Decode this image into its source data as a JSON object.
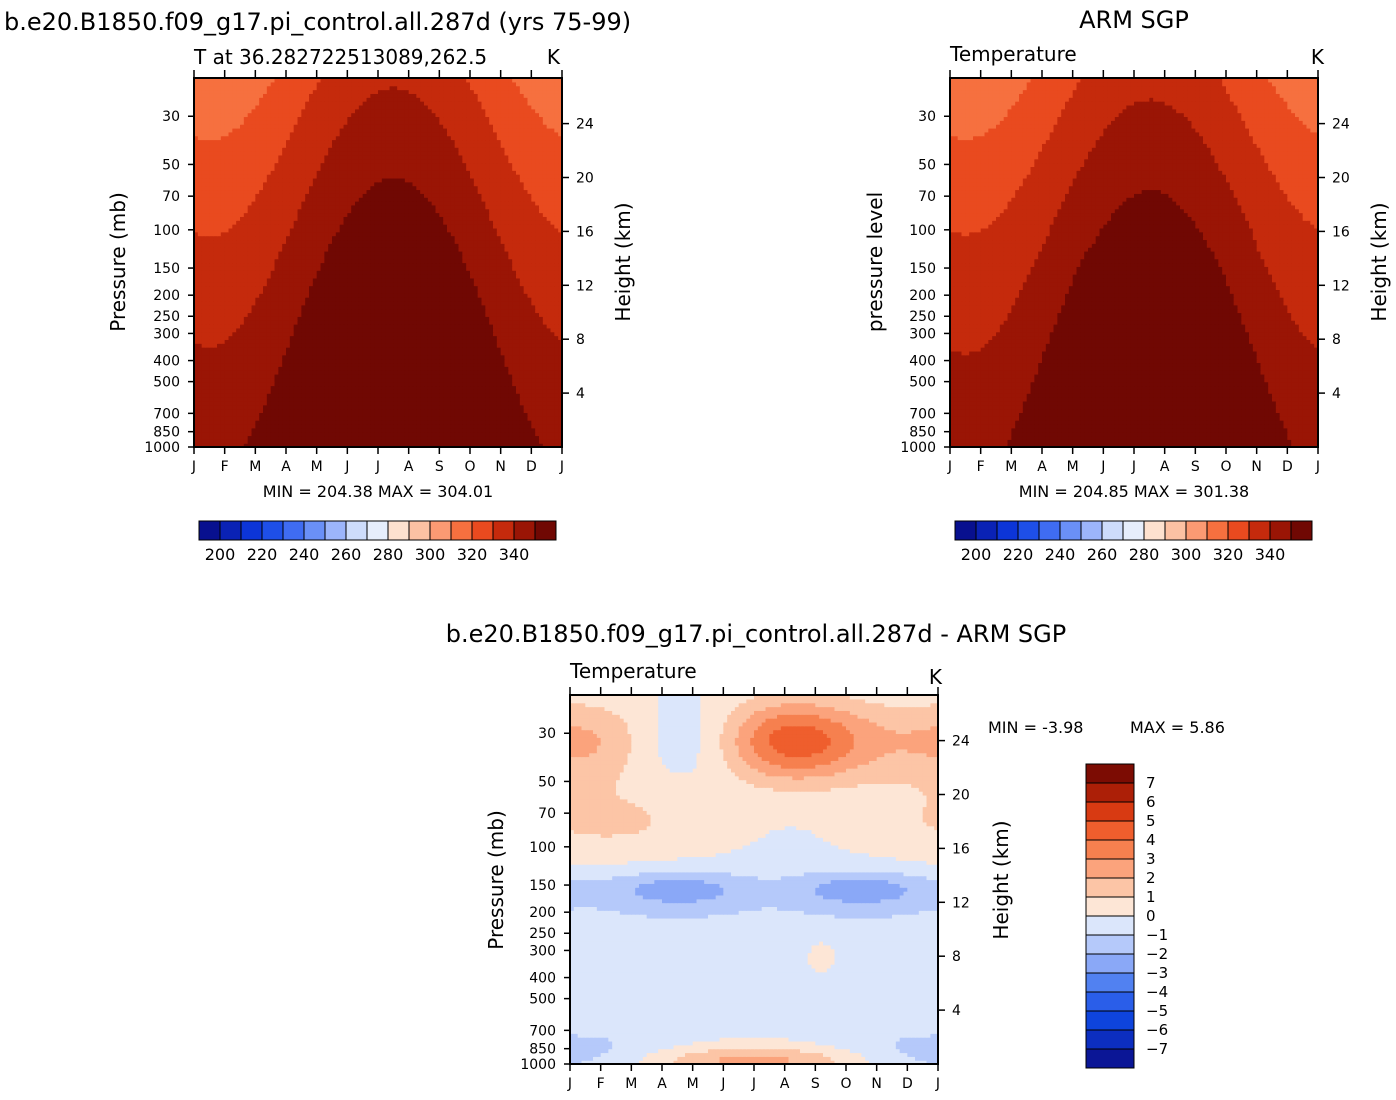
{
  "chart_data": [
    {
      "type": "heatmap",
      "title": "b.e20.B1850.f09_g17.pi_control.all.287d (yrs 75-99)",
      "subtitle_left": "T at 36.282722513089,262.5",
      "units": "K",
      "ylabel": "Pressure (mb)",
      "y2label": "Height (km)",
      "x_ticks": [
        "J",
        "F",
        "M",
        "A",
        "M",
        "J",
        "J",
        "A",
        "S",
        "O",
        "N",
        "D",
        "J"
      ],
      "y_ticks": [
        30,
        50,
        70,
        100,
        150,
        200,
        250,
        300,
        400,
        500,
        700,
        850,
        1000
      ],
      "y2_ticks": [
        4,
        8,
        12,
        16,
        20,
        24
      ],
      "ylim": [
        1000,
        20
      ],
      "stats": "MIN = 204.38 MAX = 304.01",
      "min": 204.38,
      "max": 304.01,
      "colorbar_labels": [
        "200",
        "220",
        "240",
        "260",
        "280",
        "300",
        "320",
        "340"
      ]
    },
    {
      "type": "heatmap",
      "title": "ARM SGP",
      "subtitle_left": "Temperature",
      "units": "K",
      "ylabel": "pressure level",
      "y2label": "Height (km)",
      "x_ticks": [
        "J",
        "F",
        "M",
        "A",
        "M",
        "J",
        "J",
        "A",
        "S",
        "O",
        "N",
        "D",
        "J"
      ],
      "y_ticks": [
        30,
        50,
        70,
        100,
        150,
        200,
        250,
        300,
        400,
        500,
        700,
        850,
        1000
      ],
      "y2_ticks": [
        4,
        8,
        12,
        16,
        20,
        24
      ],
      "ylim": [
        1000,
        20
      ],
      "stats": "MIN = 204.85 MAX = 301.38",
      "min": 204.85,
      "max": 301.38,
      "colorbar_labels": [
        "200",
        "220",
        "240",
        "260",
        "280",
        "300",
        "320",
        "340"
      ]
    },
    {
      "type": "heatmap",
      "title": "b.e20.B1850.f09_g17.pi_control.all.287d - ARM SGP",
      "subtitle_left": "Temperature",
      "units": "K",
      "ylabel": "Pressure (mb)",
      "y2label": "Height (km)",
      "x_ticks": [
        "J",
        "F",
        "M",
        "A",
        "M",
        "J",
        "J",
        "A",
        "S",
        "O",
        "N",
        "D",
        "J"
      ],
      "y_ticks": [
        30,
        50,
        70,
        100,
        150,
        200,
        250,
        300,
        400,
        500,
        700,
        850,
        1000
      ],
      "y2_ticks": [
        4,
        8,
        12,
        16,
        20,
        24
      ],
      "ylim": [
        1000,
        20
      ],
      "stats_min": "MIN = -3.98",
      "stats_max": "MAX = 5.86",
      "min": -3.98,
      "max": 5.86,
      "colorbar_labels": [
        "7",
        "6",
        "5",
        "4",
        "3",
        "2",
        "1",
        "0",
        "-1",
        "-2",
        "-3",
        "-4",
        "-5",
        "-6",
        "-7"
      ]
    }
  ],
  "colors": {
    "abs_palette": [
      "#08108f",
      "#0a22b5",
      "#0c35d8",
      "#1e4fe8",
      "#3f6cf2",
      "#6a90f7",
      "#9cb5fb",
      "#cddcfb",
      "#e6eefc",
      "#fde1cf",
      "#fcc1a3",
      "#fb9a73",
      "#f6703f",
      "#e94a1f",
      "#c52a0c",
      "#9a1505",
      "#700803"
    ],
    "diff_palette": [
      "#0b1696",
      "#0c2ec0",
      "#0e44dd",
      "#2a5ee9",
      "#5181f1",
      "#8aa8f7",
      "#b5c9fa",
      "#dbe6fb",
      "#fde6d6",
      "#fcc5a6",
      "#fba37c",
      "#f6804f",
      "#ef5e2d",
      "#d83a12",
      "#ac1f07",
      "#7c0c03"
    ]
  }
}
